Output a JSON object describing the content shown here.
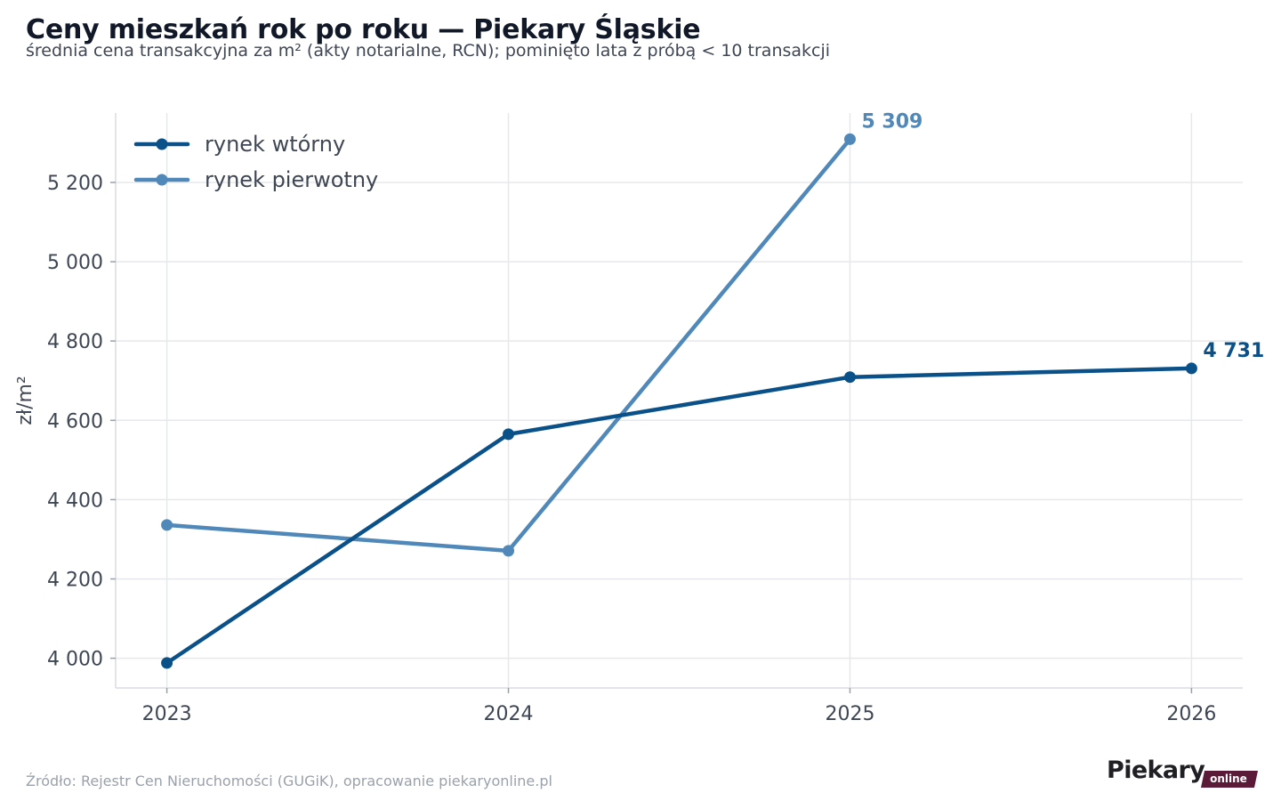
{
  "header": {
    "title": "Ceny mieszkań rok po roku — Piekary Śląskie",
    "subtitle": "średnia cena transakcyjna za m² (akty notarialne, RCN); pominięto lata z próbą < 10 transakcji"
  },
  "footer": {
    "source": "Źródło: Rejestr Cen Nieruchomości (GUGiK), opracowanie piekaryonline.pl",
    "logo_word": "Piekary",
    "logo_tag": "online"
  },
  "chart_data": {
    "type": "line",
    "x": [
      2023,
      2024,
      2025,
      2026
    ],
    "x_tick_labels": [
      "2023",
      "2024",
      "2025",
      "2026"
    ],
    "xlim": [
      2022.85,
      2026.15
    ],
    "ylabel": "zł/m²",
    "ylim": [
      3925,
      5375
    ],
    "y_ticks": [
      4000,
      4200,
      4400,
      4600,
      4800,
      5000,
      5200
    ],
    "y_tick_labels": [
      "4 000",
      "4 200",
      "4 400",
      "4 600",
      "4 800",
      "5 000",
      "5 200"
    ],
    "grid": true,
    "legend_position": "top-left",
    "series": [
      {
        "name": "rynek wtórny",
        "color": "#0b5189",
        "values": [
          3988,
          4565,
          4709,
          4731
        ],
        "end_label": "4 731"
      },
      {
        "name": "rynek pierwotny",
        "color": "#4f88b9",
        "values": [
          4336,
          4271,
          5309,
          null
        ],
        "end_label": "5 309"
      }
    ]
  }
}
